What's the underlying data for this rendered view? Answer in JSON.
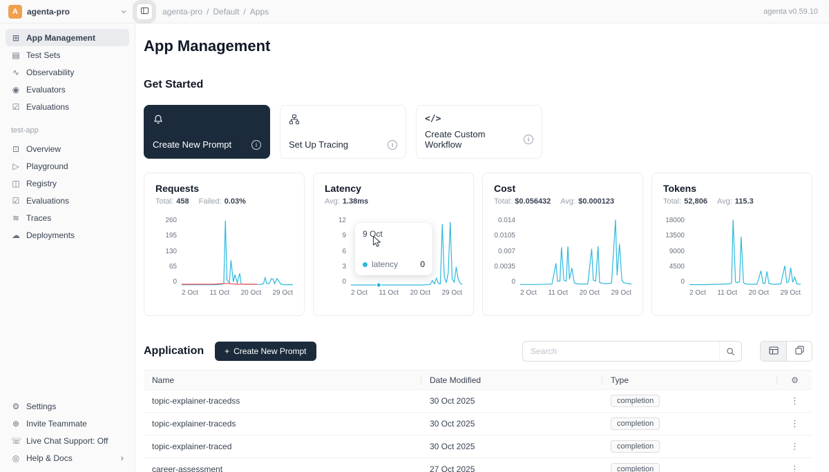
{
  "header": {
    "workspace": {
      "avatar_letter": "A",
      "name": "agenta-pro"
    },
    "breadcrumb": {
      "parts": [
        "agenta-pro",
        "Default",
        "Apps"
      ],
      "separator": "/"
    },
    "version": "agenta v0.59.10"
  },
  "icons": {
    "gear": "⚙",
    "kebab": "⋮",
    "chevron_right": "›",
    "plus": "+"
  },
  "colors": {
    "accent": "#2cb8dd",
    "danger": "#ff4d4f",
    "dark": "#1b2b3c",
    "avatar": "#efa14f"
  },
  "sidebar": {
    "main_items": [
      {
        "label": "App Management",
        "glyph": "⊞",
        "active": true
      },
      {
        "label": "Test Sets",
        "glyph": "▤"
      },
      {
        "label": "Observability",
        "glyph": "∿"
      },
      {
        "label": "Evaluators",
        "glyph": "◉"
      },
      {
        "label": "Evaluations",
        "glyph": "☑"
      }
    ],
    "app_section": {
      "label": "test-app",
      "items": [
        {
          "label": "Overview",
          "glyph": "⊡"
        },
        {
          "label": "Playground",
          "glyph": "▷"
        },
        {
          "label": "Registry",
          "glyph": "◫"
        },
        {
          "label": "Evaluations",
          "glyph": "☑"
        },
        {
          "label": "Traces",
          "glyph": "≋"
        },
        {
          "label": "Deployments",
          "glyph": "☁"
        }
      ]
    },
    "bottom_items": [
      {
        "label": "Settings",
        "glyph": "⚙"
      },
      {
        "label": "Invite Teammate",
        "glyph": "⊕"
      },
      {
        "label": "Live Chat Support: Off",
        "glyph": "☏"
      },
      {
        "label": "Help & Docs",
        "glyph": "◎",
        "chevron": "›"
      }
    ]
  },
  "main": {
    "page_title": "App Management",
    "get_started": {
      "title": "Get Started",
      "cards": [
        {
          "label": "Create New Prompt"
        },
        {
          "label": "Set Up Tracing"
        },
        {
          "label": "Create Custom Workflow",
          "code_glyph": "</>"
        }
      ]
    },
    "application": {
      "title": "Application",
      "create_button": "Create New Prompt",
      "search_placeholder": "Search",
      "table": {
        "columns": [
          "Name",
          "Date Modified",
          "Type"
        ],
        "rows": [
          {
            "name": "topic-explainer-tracedss",
            "date_modified": "30 Oct 2025",
            "type": "completion"
          },
          {
            "name": "topic-explainer-traceds",
            "date_modified": "30 Oct 2025",
            "type": "completion"
          },
          {
            "name": "topic-explainer-traced",
            "date_modified": "30 Oct 2025",
            "type": "completion"
          },
          {
            "name": "career-assessment",
            "date_modified": "27 Oct 2025",
            "type": "completion"
          }
        ]
      }
    }
  },
  "tooltip": {
    "date": "9 Oct",
    "series": "latency",
    "value": "0"
  },
  "chart_data": [
    {
      "type": "line",
      "title": "Requests",
      "stats": [
        {
          "label": "Total:",
          "value": "458"
        },
        {
          "label": "Failed:",
          "value": "0.03%"
        }
      ],
      "x_ticks": [
        "2 Oct",
        "11 Oct",
        "20 Oct",
        "29 Oct"
      ],
      "y_ticks": [
        "0",
        "65",
        "130",
        "195",
        "260"
      ],
      "xlim": [
        2,
        30
      ],
      "ylim": [
        0,
        260
      ],
      "series": [
        {
          "name": "requests",
          "color": "#2cb8dd",
          "x": [
            2,
            4,
            6,
            8,
            10,
            12,
            12.6,
            13,
            13.4,
            14,
            14.4,
            15,
            15.4,
            16,
            16.6,
            17,
            18,
            20,
            22,
            22.6,
            23,
            23.4,
            24,
            24.6,
            25,
            25.4,
            26,
            27,
            28,
            29,
            30
          ],
          "values": [
            1,
            1,
            1,
            1,
            1,
            2,
            5,
            248,
            20,
            8,
            95,
            12,
            40,
            8,
            45,
            3,
            2,
            2,
            2,
            5,
            28,
            6,
            5,
            25,
            22,
            5,
            25,
            3,
            1,
            1,
            1
          ]
        },
        {
          "name": "failed",
          "color": "#ff4d4f",
          "x": [
            2,
            6,
            10,
            13,
            16,
            21
          ],
          "values": [
            3,
            3,
            3,
            6,
            3,
            3
          ]
        }
      ]
    },
    {
      "type": "line",
      "title": "Latency",
      "stats": [
        {
          "label": "Avg:",
          "value": "1.38ms"
        }
      ],
      "x_ticks": [
        "2 Oct",
        "11 Oct",
        "20 Oct",
        "29 Oct"
      ],
      "y_ticks": [
        "0",
        "3",
        "6",
        "9",
        "12"
      ],
      "xlim": [
        2,
        30
      ],
      "ylim": [
        0,
        12
      ],
      "marker": {
        "x": 9,
        "y": 0,
        "color": "#2cb8dd"
      },
      "series": [
        {
          "name": "latency",
          "color": "#2cb8dd",
          "x": [
            2,
            8,
            14,
            20,
            22,
            22.5,
            23,
            23.5,
            24,
            24.5,
            25,
            25.5,
            26,
            26.5,
            27,
            27.5,
            28,
            28.5,
            29,
            29.5,
            30
          ],
          "values": [
            0,
            0,
            0,
            0,
            0.1,
            0.8,
            0.2,
            1.2,
            0.3,
            0.2,
            10.8,
            1.5,
            0.4,
            2.2,
            11.2,
            1.0,
            0.5,
            3.2,
            1.0,
            0.3,
            0.1
          ]
        }
      ]
    },
    {
      "type": "line",
      "title": "Cost",
      "stats": [
        {
          "label": "Total:",
          "value": "$0.056432"
        },
        {
          "label": "Avg:",
          "value": "$0.000123"
        }
      ],
      "x_ticks": [
        "2 Oct",
        "11 Oct",
        "20 Oct",
        "29 Oct"
      ],
      "y_ticks": [
        "0",
        "0.0035",
        "0.007",
        "0.0105",
        "0.014"
      ],
      "xlim": [
        2,
        30
      ],
      "ylim": [
        0,
        0.014
      ],
      "series": [
        {
          "name": "cost",
          "color": "#2cb8dd",
          "x": [
            2,
            6,
            10,
            11,
            11.4,
            12,
            12.4,
            13,
            13.6,
            14,
            14.4,
            15,
            15.6,
            16,
            17,
            18,
            19,
            20,
            20.4,
            21,
            21.6,
            22,
            23,
            24,
            25,
            26,
            26.4,
            27,
            27.6,
            28,
            29,
            30
          ],
          "values": [
            0.0001,
            0.0001,
            0.0002,
            0.0045,
            0.0008,
            0.0008,
            0.0078,
            0.001,
            0.0008,
            0.008,
            0.0012,
            0.0035,
            0.0005,
            0.0003,
            0.0002,
            0.0002,
            0.0002,
            0.0075,
            0.001,
            0.0008,
            0.008,
            0.0005,
            0.0003,
            0.0003,
            0.0004,
            0.0135,
            0.002,
            0.0085,
            0.001,
            0.0005,
            0.0003,
            0.0002
          ]
        }
      ]
    },
    {
      "type": "line",
      "title": "Tokens",
      "stats": [
        {
          "label": "Total:",
          "value": "52,806"
        },
        {
          "label": "Avg:",
          "value": "115.3"
        }
      ],
      "x_ticks": [
        "2 Oct",
        "11 Oct",
        "20 Oct",
        "29 Oct"
      ],
      "y_ticks": [
        "0",
        "4500",
        "9000",
        "13500",
        "18000"
      ],
      "xlim": [
        2,
        30
      ],
      "ylim": [
        0,
        18000
      ],
      "series": [
        {
          "name": "tokens",
          "color": "#2cb8dd",
          "x": [
            2,
            6,
            10,
            12,
            12.6,
            13,
            13.6,
            14,
            14.6,
            15,
            15.6,
            16,
            17,
            18,
            19,
            20,
            20.5,
            21,
            21.5,
            22,
            22.5,
            23,
            24,
            25,
            26,
            26.5,
            27,
            27.5,
            28,
            28.5,
            29,
            30
          ],
          "values": [
            100,
            100,
            200,
            300,
            500,
            17400,
            800,
            600,
            900,
            12800,
            700,
            300,
            200,
            200,
            200,
            3800,
            500,
            400,
            3600,
            500,
            300,
            200,
            200,
            300,
            5100,
            600,
            900,
            4600,
            700,
            2100,
            300,
            200
          ]
        }
      ]
    }
  ]
}
